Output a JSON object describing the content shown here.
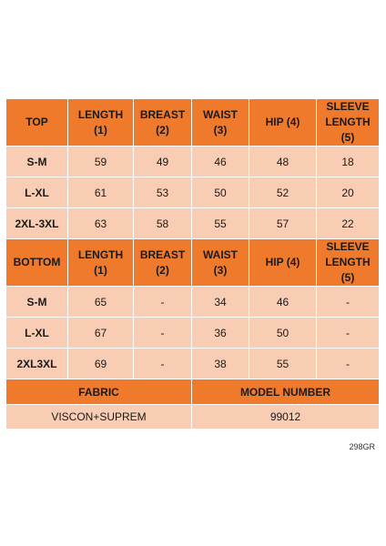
{
  "top": {
    "headers": [
      "TOP",
      "LENGTH\n(1)",
      "BREAST\n(2)",
      "WAIST\n(3)",
      "HIP (4)",
      "SLEEVE\nLENGTH\n(5)"
    ],
    "rows": [
      [
        "S-M",
        "59",
        "49",
        "46",
        "48",
        "18"
      ],
      [
        "L-XL",
        "61",
        "53",
        "50",
        "52",
        "20"
      ],
      [
        "2XL-3XL",
        "63",
        "58",
        "55",
        "57",
        "22"
      ]
    ]
  },
  "bottom": {
    "headers": [
      "BOTTOM",
      "LENGTH\n(1)",
      "BREAST\n(2)",
      "WAIST\n(3)",
      "HIP (4)",
      "SLEEVE\nLENGTH\n(5)"
    ],
    "rows": [
      [
        "S-M",
        "65",
        "-",
        "34",
        "46",
        "-"
      ],
      [
        "L-XL",
        "67",
        "-",
        "36",
        "50",
        "-"
      ],
      [
        "2XL3XL",
        "69",
        "-",
        "38",
        "55",
        "-"
      ]
    ]
  },
  "footer": {
    "fabric_label": "FABRIC",
    "fabric_value": "VISCON+SUPREM",
    "model_label": "MODEL NUMBER",
    "model_value": "99012"
  },
  "product_code": "298GR",
  "colors": {
    "header": "#ef7a2c",
    "cell": "#f8cdb3"
  }
}
